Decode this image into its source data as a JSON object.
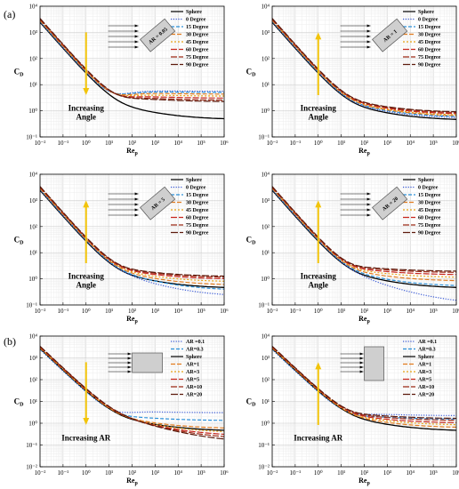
{
  "labels": {
    "a": "(a)",
    "b": "(b)"
  },
  "chart_data": [
    {
      "type": "line",
      "xlabel": "Rep",
      "ylabel": "CD",
      "xlim": [
        0.01,
        1000000
      ],
      "ylim": [
        0.1,
        10000
      ],
      "xscale": "log",
      "yscale": "log",
      "grid": true,
      "inset_label": "AR = 0.05",
      "annotation": "Increasing Angle",
      "legend": [
        "Sphere",
        "0 Degree",
        "15 Degree",
        "30 Degree",
        "45 Degree",
        "60 Degree",
        "75 Degree",
        "90 Degree"
      ],
      "legend_placement": "top-right",
      "plateaus": [
        0.45,
        5.5,
        5.0,
        4.3,
        3.6,
        3.0,
        2.5,
        2.2
      ]
    },
    {
      "type": "line",
      "xlabel": "Rep",
      "ylabel": "CD",
      "xlim": [
        0.01,
        1000000
      ],
      "ylim": [
        0.1,
        10000
      ],
      "xscale": "log",
      "yscale": "log",
      "grid": true,
      "inset_label": "AR = 1",
      "annotation": "Increasing Angle",
      "legend": [
        "Sphere",
        "0 Degree",
        "15 Degree",
        "30 Degree",
        "45 Degree",
        "60 Degree",
        "75 Degree",
        "90 Degree"
      ],
      "legend_placement": "top-right",
      "plateaus": [
        0.42,
        0.5,
        0.55,
        0.6,
        0.65,
        0.72,
        0.8,
        0.85
      ]
    },
    {
      "type": "line",
      "xlabel": "Rep",
      "ylabel": "CD",
      "xlim": [
        0.01,
        1000000
      ],
      "ylim": [
        0.1,
        10000
      ],
      "xscale": "log",
      "yscale": "log",
      "grid": true,
      "inset_label": "AR = 5",
      "annotation": "Increasing Angle",
      "legend": [
        "Sphere",
        "0 Degree",
        "15 Degree",
        "30 Degree",
        "45 Degree",
        "60 Degree",
        "75 Degree",
        "90 Degree"
      ],
      "legend_placement": "top-right",
      "plateaus": [
        0.42,
        0.2,
        0.35,
        0.55,
        0.75,
        0.95,
        1.1,
        1.2
      ]
    },
    {
      "type": "line",
      "xlabel": "Rep",
      "ylabel": "CD",
      "xlim": [
        0.01,
        1000000
      ],
      "ylim": [
        0.1,
        10000
      ],
      "xscale": "log",
      "yscale": "log",
      "grid": true,
      "inset_label": "AR = 20",
      "annotation": "Increasing Angle",
      "legend": [
        "Sphere",
        "0 Degree",
        "15 Degree",
        "30 Degree",
        "45 Degree",
        "60 Degree",
        "75 Degree",
        "90 Degree"
      ],
      "legend_placement": "top-right",
      "plateaus": [
        0.42,
        0.1,
        0.5,
        0.8,
        1.1,
        1.4,
        1.7,
        1.9
      ]
    },
    {
      "type": "line",
      "xlabel": "Rep",
      "ylabel": "CD",
      "xlim": [
        0.01,
        1000000
      ],
      "ylim": [
        0.01,
        10000
      ],
      "xscale": "log",
      "yscale": "log",
      "grid": true,
      "annotation": "Increasing AR",
      "legend": [
        "AR =0.1",
        "AR=0.3",
        "Sphere",
        "AR=1",
        "AR=3",
        "AR=5",
        "AR=10",
        "AR=20"
      ],
      "legend_placement": "top-right",
      "plateaus": [
        3.0,
        1.3,
        0.42,
        0.55,
        0.35,
        0.25,
        0.18,
        0.12
      ]
    },
    {
      "type": "line",
      "xlabel": "Rep",
      "ylabel": "CD",
      "xlim": [
        0.01,
        1000000
      ],
      "ylim": [
        0.01,
        10000
      ],
      "xscale": "log",
      "yscale": "log",
      "grid": true,
      "annotation": "Increasing AR",
      "legend": [
        "AR =0.1",
        "AR=0.3",
        "Sphere",
        "AR=1",
        "AR=3",
        "AR=5",
        "AR=10",
        "AR=20"
      ],
      "legend_placement": "top-right",
      "plateaus": [
        2.2,
        1.5,
        0.42,
        0.6,
        0.8,
        1.0,
        1.3,
        1.6
      ]
    }
  ],
  "styles": {
    "angle": [
      {
        "color": "#000000",
        "dash": ""
      },
      {
        "color": "#3b5bd6",
        "dash": "1.2,1.6"
      },
      {
        "color": "#2a8fd8",
        "dash": "4,2"
      },
      {
        "color": "#e27b1e",
        "dash": "5,2"
      },
      {
        "color": "#e8a317",
        "dash": "2,2"
      },
      {
        "color": "#c8261d",
        "dash": "7,2"
      },
      {
        "color": "#9c2a16",
        "dash": "7,2"
      },
      {
        "color": "#5c1a0c",
        "dash": "8,2"
      }
    ],
    "ar": [
      {
        "color": "#3b5bd6",
        "dash": "1.2,1.6"
      },
      {
        "color": "#2a8fd8",
        "dash": "4,2"
      },
      {
        "color": "#000000",
        "dash": ""
      },
      {
        "color": "#e27b1e",
        "dash": "5,2"
      },
      {
        "color": "#e8a317",
        "dash": "2,2"
      },
      {
        "color": "#c8261d",
        "dash": "7,2"
      },
      {
        "color": "#9c2a16",
        "dash": "7,2"
      },
      {
        "color": "#5c1a0c",
        "dash": "8,2"
      }
    ],
    "arrow_color": "#f2c40a"
  }
}
